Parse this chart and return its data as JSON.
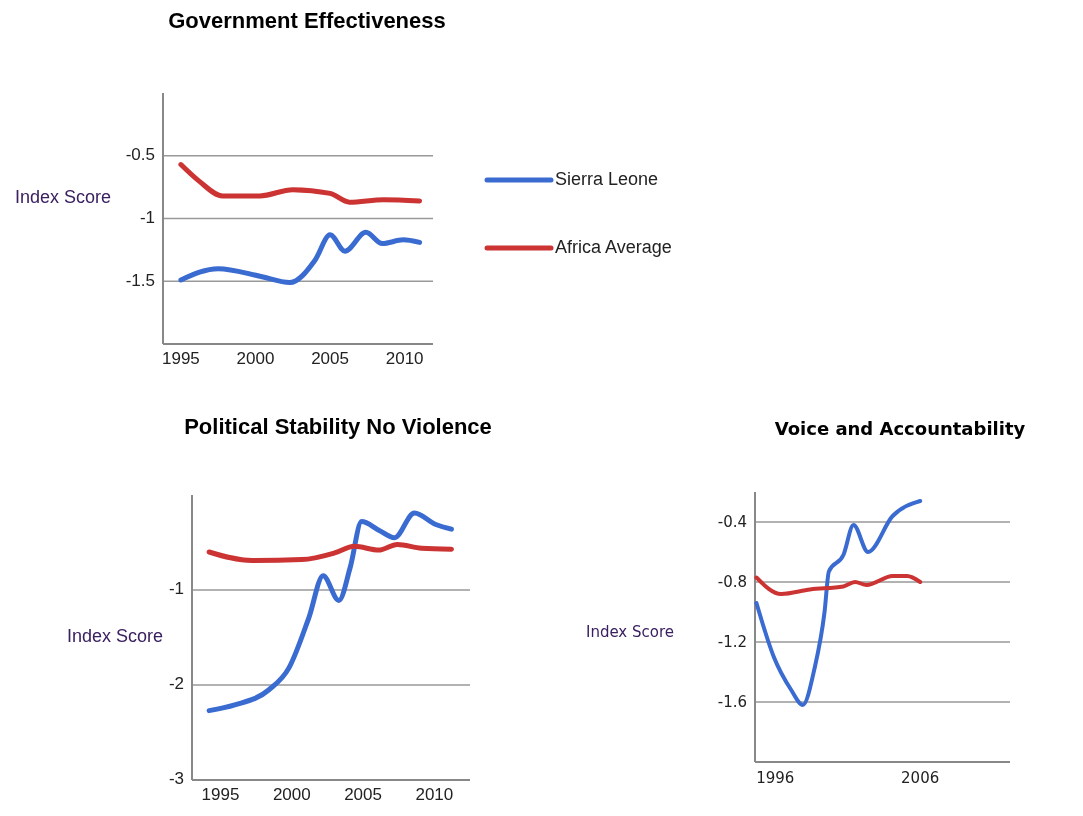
{
  "chart_data": [
    {
      "type": "line",
      "title": "Government  Effectiveness",
      "ylabel": "Index Score",
      "xlim": [
        1993.8,
        2011.9
      ],
      "xticks": [
        1995,
        2000,
        2005,
        2010
      ],
      "ylim": [
        -2,
        0
      ],
      "yticks": [
        -1.5,
        -1,
        -0.5
      ],
      "grid": "y",
      "legend": "right",
      "series": [
        {
          "name": "Sierra Leone",
          "color": "#3a6bd0",
          "x": [
            1995,
            1997.5,
            2000.3,
            2002.3,
            2004,
            2005,
            2006,
            2007.4,
            2008.5,
            2009.9,
            2011
          ],
          "values": [
            -1.49,
            -1.4,
            -1.46,
            -1.51,
            -1.33,
            -1.13,
            -1.26,
            -1.11,
            -1.2,
            -1.17,
            -1.19
          ]
        },
        {
          "name": "Africa Average",
          "color": "#cc3333",
          "x": [
            1995,
            1996.2,
            1997.8,
            2000.3,
            2002.5,
            2005,
            2006.3,
            2008.6,
            2011
          ],
          "values": [
            -0.57,
            -0.7,
            -0.82,
            -0.82,
            -0.77,
            -0.8,
            -0.87,
            -0.85,
            -0.86
          ]
        }
      ]
    },
    {
      "type": "line",
      "title": "Political Stability No Violence",
      "ylabel": "Index Score",
      "xlim": [
        1993,
        2012.5
      ],
      "xticks": [
        1995,
        2000,
        2005,
        2010
      ],
      "ylim": [
        -3,
        0
      ],
      "yticks": [
        -3,
        -2,
        -1
      ],
      "grid": "y",
      "series": [
        {
          "color": "#3a6bd0",
          "x": [
            1994.2,
            1996,
            1998.4,
            1999.8,
            2001.2,
            2002.2,
            2003.3,
            2004.1,
            2004.9,
            2006.1,
            2007.2,
            2008.6,
            2010.1,
            2011.2
          ],
          "values": [
            -2.27,
            -2.21,
            -2.05,
            -1.82,
            -1.29,
            -0.85,
            -1.11,
            -0.76,
            -0.28,
            -0.37,
            -0.45,
            -0.19,
            -0.31,
            -0.36
          ]
        },
        {
          "color": "#cc3333",
          "x": [
            1994.2,
            1997.2,
            2000.7,
            2003,
            2004.4,
            2006.1,
            2007.4,
            2009.1,
            2011.2
          ],
          "values": [
            -0.6,
            -0.69,
            -0.68,
            -0.61,
            -0.54,
            -0.58,
            -0.52,
            -0.56,
            -0.57
          ]
        }
      ]
    },
    {
      "type": "line",
      "title": "Voice and Accountability",
      "ylabel": "Index Score",
      "xlim": [
        1994.6,
        2012.2
      ],
      "xticks": [
        1996,
        2006
      ],
      "ylim": [
        -2,
        -0.2
      ],
      "yticks": [
        -1.6,
        -1.2,
        -0.8,
        -0.4
      ],
      "grid": "y",
      "series": [
        {
          "color": "#3a6bd0",
          "x": [
            1994.7,
            1995.9,
            1997.1,
            1997.9,
            1998.7,
            1999.4,
            1999.7,
            2000.7,
            2001.4,
            2002.4,
            2004.1,
            2006
          ],
          "values": [
            -0.94,
            -1.3,
            -1.52,
            -1.62,
            -1.38,
            -1.0,
            -0.73,
            -0.62,
            -0.42,
            -0.6,
            -0.36,
            -0.26
          ]
        },
        {
          "color": "#cc3333",
          "x": [
            1994.7,
            1996.4,
            1998.4,
            2000.7,
            2001.5,
            2002.3,
            2004.1,
            2005.1,
            2006
          ],
          "values": [
            -0.77,
            -0.88,
            -0.85,
            -0.83,
            -0.8,
            -0.82,
            -0.76,
            -0.76,
            -0.8
          ]
        }
      ]
    }
  ]
}
